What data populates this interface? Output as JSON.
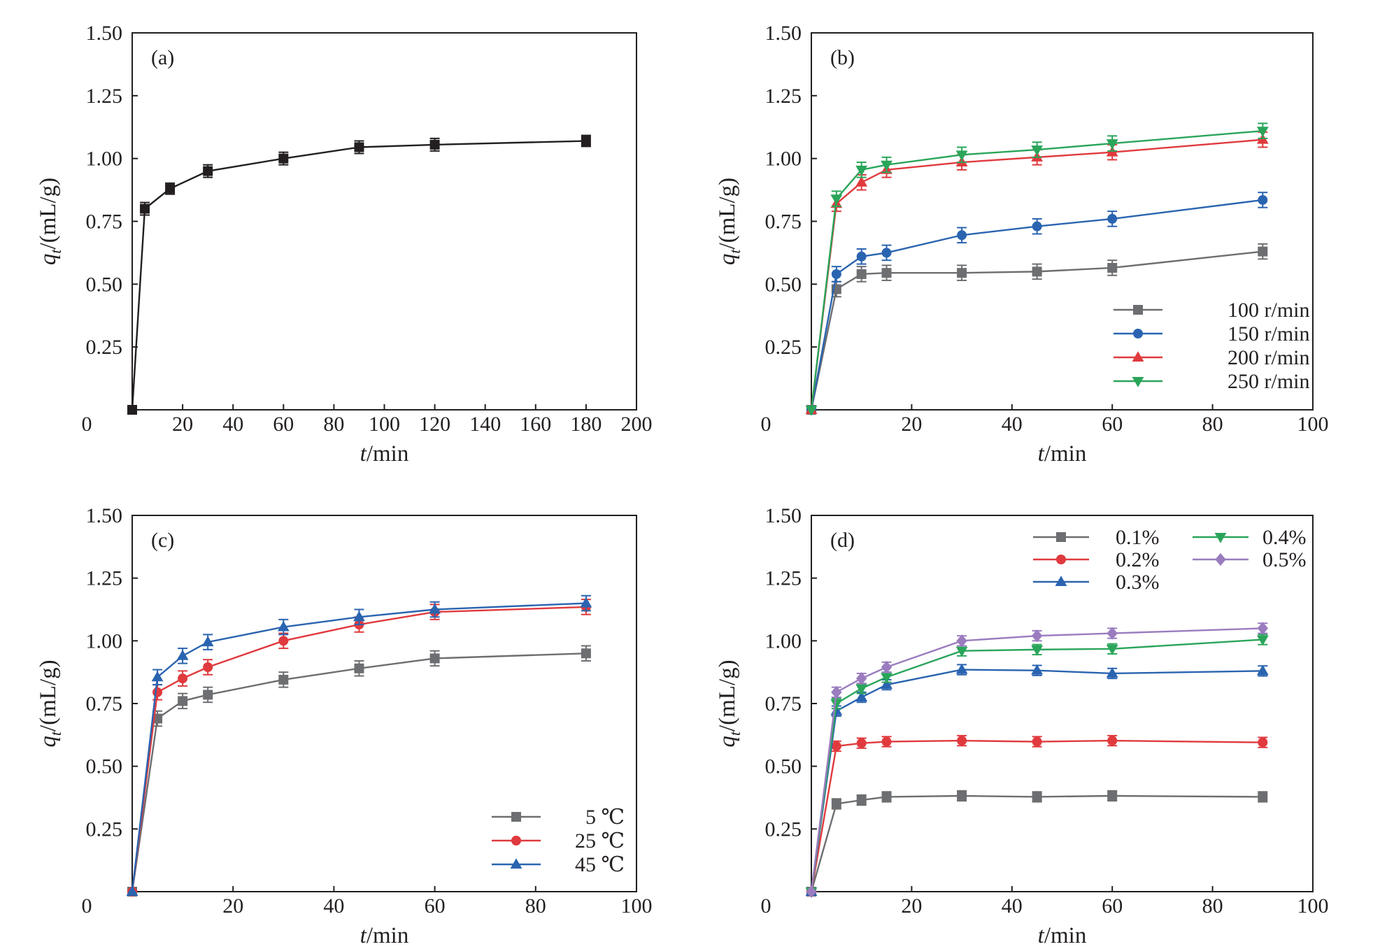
{
  "colors": {
    "axis": "#231f20",
    "black": "#231f20",
    "gray": "#6d6e71",
    "blue": "#2a64b0",
    "red": "#e03a3e",
    "green": "#2aa55a",
    "purple": "#9a7cbf"
  },
  "chart_data": [
    {
      "type": "line",
      "panel": "(a)",
      "xlabel": {
        "italic": "t",
        "rest": "/min"
      },
      "ylabel": {
        "italic": "q",
        "sub": "t",
        "rest": "/(mL/g)"
      },
      "xlim": [
        0,
        200
      ],
      "ylim": [
        0,
        1.5
      ],
      "xticks": [
        "0",
        "20",
        "40",
        "60",
        "80",
        "100",
        "120",
        "140",
        "160",
        "180",
        "200"
      ],
      "yticks": [
        "0.25",
        "0.50",
        "0.75",
        "1.00",
        "1.25",
        "1.50"
      ],
      "grid": false,
      "legend": "none",
      "series": [
        {
          "color": "black",
          "marker": "square",
          "x": [
            0,
            5,
            15,
            30,
            60,
            90,
            120,
            180
          ],
          "y": [
            0,
            0.8,
            0.88,
            0.95,
            1.0,
            1.045,
            1.055,
            1.07
          ],
          "err": [
            0,
            0.025,
            0.022,
            0.025,
            0.025,
            0.025,
            0.025,
            0.022
          ]
        }
      ]
    },
    {
      "type": "line",
      "panel": "(b)",
      "xlabel": {
        "italic": "t",
        "rest": "/min"
      },
      "ylabel": {
        "italic": "q",
        "sub": "t",
        "rest": "/(mL/g)"
      },
      "xlim": [
        0,
        100
      ],
      "ylim": [
        0,
        1.5
      ],
      "xticks": [
        "0",
        "20",
        "40",
        "60",
        "80",
        "100"
      ],
      "yticks": [
        "0.25",
        "0.50",
        "0.75",
        "1.00",
        "1.25",
        "1.50"
      ],
      "grid": false,
      "legend": "bottom-right",
      "series": [
        {
          "name": "100 r/min",
          "color": "gray",
          "marker": "square",
          "x": [
            0,
            5,
            10,
            15,
            30,
            45,
            60,
            90
          ],
          "y": [
            0,
            0.48,
            0.54,
            0.545,
            0.545,
            0.55,
            0.565,
            0.63
          ],
          "err": [
            0,
            0.03,
            0.03,
            0.03,
            0.03,
            0.03,
            0.03,
            0.03
          ]
        },
        {
          "name": "150 r/min",
          "color": "blue",
          "marker": "circle",
          "x": [
            0,
            5,
            10,
            15,
            30,
            45,
            60,
            90
          ],
          "y": [
            0,
            0.54,
            0.61,
            0.625,
            0.695,
            0.73,
            0.76,
            0.835
          ],
          "err": [
            0,
            0.03,
            0.03,
            0.03,
            0.03,
            0.03,
            0.03,
            0.03
          ]
        },
        {
          "name": "200 r/min",
          "color": "red",
          "marker": "triangle-up",
          "x": [
            0,
            5,
            10,
            15,
            30,
            45,
            60,
            90
          ],
          "y": [
            0,
            0.82,
            0.905,
            0.955,
            0.985,
            1.005,
            1.025,
            1.075
          ],
          "err": [
            0,
            0.03,
            0.03,
            0.03,
            0.03,
            0.03,
            0.03,
            0.03
          ]
        },
        {
          "name": "250 r/min",
          "color": "green",
          "marker": "triangle-down",
          "x": [
            0,
            5,
            10,
            15,
            30,
            45,
            60,
            90
          ],
          "y": [
            0,
            0.84,
            0.955,
            0.975,
            1.015,
            1.035,
            1.06,
            1.11
          ],
          "err": [
            0,
            0.03,
            0.03,
            0.03,
            0.03,
            0.03,
            0.03,
            0.03
          ]
        }
      ]
    },
    {
      "type": "line",
      "panel": "(c)",
      "xlabel": {
        "italic": "t",
        "rest": "/min"
      },
      "ylabel": {
        "italic": "q",
        "sub": "t",
        "rest": "/(mL/g)"
      },
      "xlim": [
        0,
        100
      ],
      "ylim": [
        0,
        1.5
      ],
      "xticks": [
        "0",
        "20",
        "40",
        "60",
        "80",
        "100"
      ],
      "yticks": [
        "0.25",
        "0.50",
        "0.75",
        "1.00",
        "1.25",
        "1.50"
      ],
      "grid": false,
      "legend": "bottom-right",
      "series": [
        {
          "name": "5 ℃",
          "color": "gray",
          "marker": "square",
          "x": [
            0,
            5,
            10,
            15,
            30,
            45,
            60,
            90
          ],
          "y": [
            0,
            0.69,
            0.76,
            0.785,
            0.845,
            0.89,
            0.93,
            0.95
          ],
          "err": [
            0,
            0.03,
            0.03,
            0.03,
            0.03,
            0.03,
            0.03,
            0.03
          ]
        },
        {
          "name": "25 ℃",
          "color": "red",
          "marker": "circle",
          "x": [
            0,
            5,
            10,
            15,
            30,
            45,
            60,
            90
          ],
          "y": [
            0,
            0.795,
            0.85,
            0.895,
            1.0,
            1.065,
            1.115,
            1.135
          ],
          "err": [
            0,
            0.03,
            0.03,
            0.03,
            0.03,
            0.03,
            0.03,
            0.03
          ]
        },
        {
          "name": "45 ℃",
          "color": "blue",
          "marker": "triangle-up",
          "x": [
            0,
            5,
            10,
            15,
            30,
            45,
            60,
            90
          ],
          "y": [
            0,
            0.855,
            0.94,
            0.995,
            1.055,
            1.095,
            1.125,
            1.15
          ],
          "err": [
            0,
            0.03,
            0.03,
            0.03,
            0.03,
            0.03,
            0.03,
            0.03
          ]
        }
      ]
    },
    {
      "type": "line",
      "panel": "(d)",
      "xlabel": {
        "italic": "t",
        "rest": "/min"
      },
      "ylabel": {
        "italic": "q",
        "sub": "t",
        "rest": "/(mL/g)"
      },
      "xlim": [
        0,
        100
      ],
      "ylim": [
        0,
        1.5
      ],
      "xticks": [
        "0",
        "20",
        "40",
        "60",
        "80",
        "100"
      ],
      "yticks": [
        "0.25",
        "0.50",
        "0.75",
        "1.00",
        "1.25",
        "1.50"
      ],
      "grid": false,
      "legend": "top-right",
      "series": [
        {
          "name": "0.1%",
          "color": "gray",
          "marker": "square",
          "x": [
            0,
            5,
            10,
            15,
            30,
            45,
            60,
            90
          ],
          "y": [
            0,
            0.35,
            0.365,
            0.378,
            0.382,
            0.378,
            0.382,
            0.378
          ],
          "err": [
            0,
            0.02,
            0.02,
            0.02,
            0.02,
            0.02,
            0.02,
            0.02
          ]
        },
        {
          "name": "0.2%",
          "color": "red",
          "marker": "circle",
          "x": [
            0,
            5,
            10,
            15,
            30,
            45,
            60,
            90
          ],
          "y": [
            0,
            0.58,
            0.592,
            0.598,
            0.602,
            0.598,
            0.602,
            0.595
          ],
          "err": [
            0,
            0.02,
            0.02,
            0.02,
            0.02,
            0.02,
            0.02,
            0.02
          ]
        },
        {
          "name": "0.3%",
          "color": "blue",
          "marker": "triangle-up",
          "x": [
            0,
            5,
            10,
            15,
            30,
            45,
            60,
            90
          ],
          "y": [
            0,
            0.72,
            0.775,
            0.825,
            0.885,
            0.882,
            0.87,
            0.88
          ],
          "err": [
            0,
            0.02,
            0.02,
            0.02,
            0.02,
            0.02,
            0.02,
            0.02
          ]
        },
        {
          "name": "0.4%",
          "color": "green",
          "marker": "triangle-down",
          "x": [
            0,
            5,
            10,
            15,
            30,
            45,
            60,
            90
          ],
          "y": [
            0,
            0.75,
            0.81,
            0.855,
            0.96,
            0.965,
            0.968,
            1.005
          ],
          "err": [
            0,
            0.02,
            0.02,
            0.02,
            0.02,
            0.02,
            0.02,
            0.02
          ]
        },
        {
          "name": "0.5%",
          "color": "purple",
          "marker": "diamond",
          "x": [
            0,
            5,
            10,
            15,
            30,
            45,
            60,
            90
          ],
          "y": [
            0,
            0.795,
            0.85,
            0.895,
            1.0,
            1.02,
            1.03,
            1.05
          ],
          "err": [
            0,
            0.02,
            0.02,
            0.02,
            0.02,
            0.02,
            0.02,
            0.02
          ]
        }
      ]
    }
  ]
}
